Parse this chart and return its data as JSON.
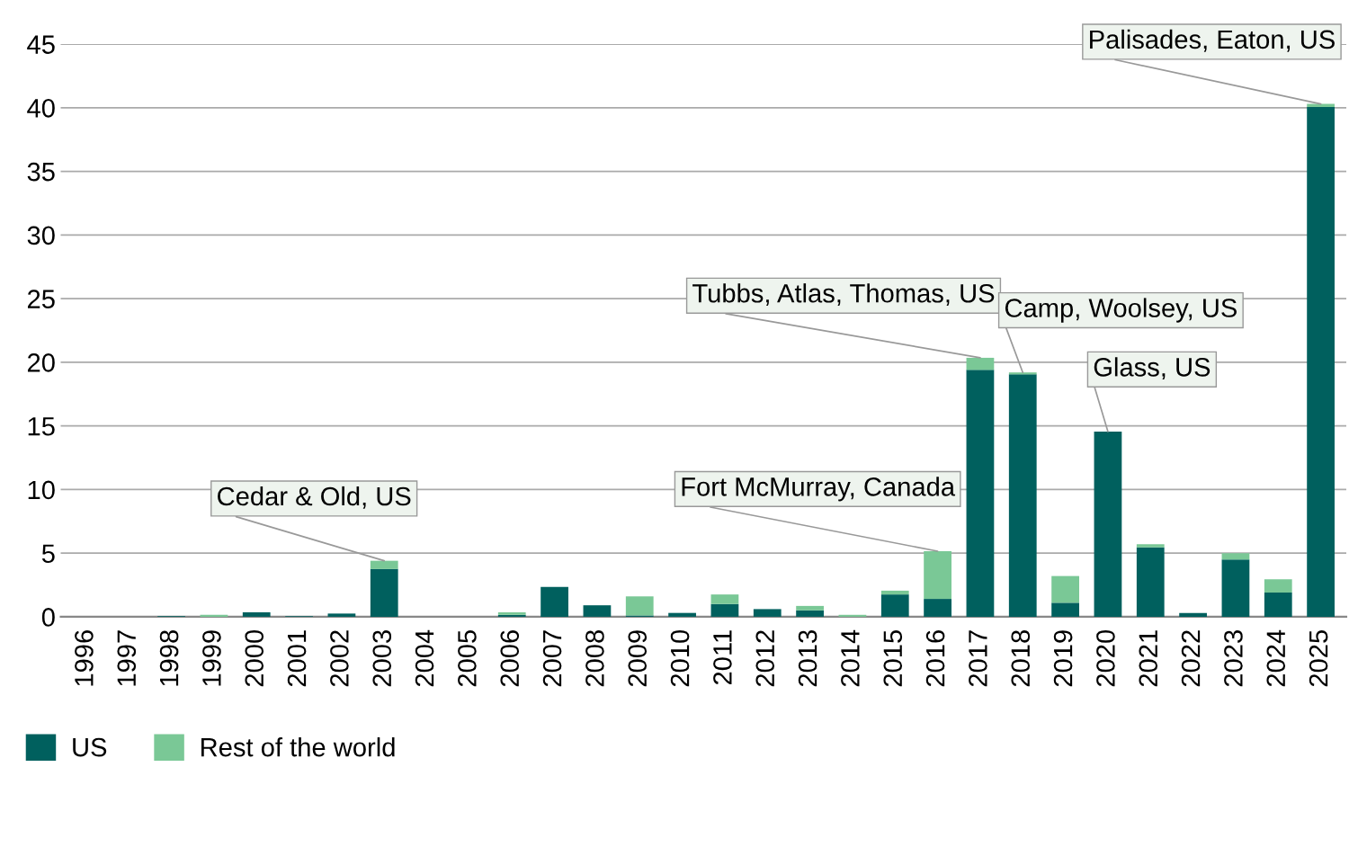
{
  "chart_data": {
    "type": "bar",
    "stacked": true,
    "categories": [
      "1996",
      "1997",
      "1998",
      "1999",
      "2000",
      "2001",
      "2002",
      "2003",
      "2004",
      "2005",
      "2006",
      "2007",
      "2008",
      "2009",
      "2010",
      "2011",
      "2012",
      "2013",
      "2014",
      "2015",
      "2016",
      "2017",
      "2018",
      "2019",
      "2020",
      "2021",
      "2022",
      "2023",
      "2024",
      "2025"
    ],
    "series": [
      {
        "name": "US",
        "color": "#00605e",
        "values": [
          0,
          0,
          0.05,
          0,
          0.35,
          0.05,
          0.25,
          3.75,
          0,
          0,
          0.15,
          2.35,
          0.9,
          0.1,
          0.3,
          1.0,
          0.6,
          0.5,
          0,
          1.75,
          1.4,
          19.4,
          19.05,
          1.1,
          14.55,
          5.45,
          0.3,
          4.5,
          1.9,
          40.05
        ]
      },
      {
        "name": "Rest of the world",
        "color": "#7ac896",
        "values": [
          0,
          0,
          0,
          0.15,
          0,
          0,
          0,
          0.65,
          0,
          0,
          0.2,
          0,
          0,
          1.5,
          0,
          0.75,
          0,
          0.35,
          0.15,
          0.3,
          3.75,
          0.95,
          0.15,
          2.1,
          0,
          0.25,
          0,
          0.5,
          1.05,
          0.25
        ]
      }
    ],
    "ylim": [
      0,
      45
    ],
    "yticks": [
      0,
      5,
      10,
      15,
      20,
      25,
      30,
      35,
      40,
      45
    ],
    "grid": "y",
    "legend": "bottom left",
    "annotations": [
      {
        "text": "Cedar & Old, US",
        "x": "2003",
        "y": 4.4
      },
      {
        "text": "Fort McMurray, Canada",
        "x": "2016",
        "y": 5.15
      },
      {
        "text": "Tubbs, Atlas, Thomas, US",
        "x": "2017",
        "y": 20.35
      },
      {
        "text": "Camp, Woolsey, US",
        "x": "2018",
        "y": 19.2
      },
      {
        "text": "Glass, US",
        "x": "2020",
        "y": 14.55
      },
      {
        "text": "Palisades, Eaton, US",
        "x": "2025",
        "y": 40.3
      }
    ]
  }
}
